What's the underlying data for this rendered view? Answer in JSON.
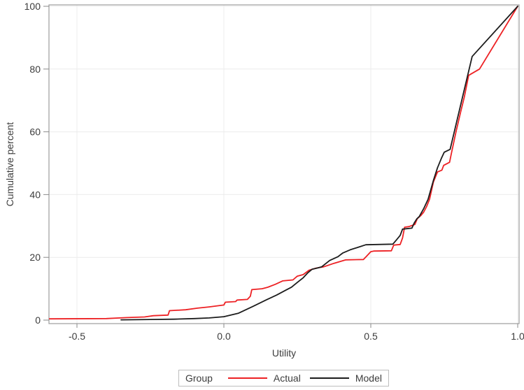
{
  "figure": {
    "background": "#ffffff",
    "x_axis": {
      "label": "Utility",
      "tick_labels": [
        "-0.5",
        "0.0",
        "0.5",
        "1.0"
      ],
      "tick_values": [
        -0.5,
        0.0,
        0.5,
        1.0
      ],
      "min": -0.6,
      "max": 1.0
    },
    "y_axis": {
      "label": "Cumulative percent",
      "tick_labels": [
        "0",
        "20",
        "40",
        "60",
        "80",
        "100"
      ],
      "tick_values": [
        0,
        20,
        40,
        60,
        80,
        100
      ],
      "min": 0,
      "max": 100
    },
    "legend": {
      "title": "Group",
      "entries": [
        {
          "label": "Actual",
          "color": "#ed2124"
        },
        {
          "label": "Model",
          "color": "#1c1c1c"
        }
      ]
    },
    "colors": {
      "frame": "#a3a3a3",
      "grid": "#ececec",
      "tick": "#8a8a8a",
      "text": "#3c3c3c",
      "legend_border": "#bdbdbd"
    }
  },
  "chart_data": {
    "type": "line",
    "title": "",
    "xlabel": "Utility",
    "ylabel": "Cumulative percent",
    "xlim": [
      -0.6,
      1.0
    ],
    "ylim": [
      0,
      100
    ],
    "grid": true,
    "legend_position": "bottom",
    "legend_title": "Group",
    "series": [
      {
        "name": "Actual",
        "color": "#ed2124",
        "points": [
          [
            -0.6,
            0.4
          ],
          [
            -0.4,
            0.5
          ],
          [
            -0.33,
            0.8
          ],
          [
            -0.27,
            1.0
          ],
          [
            -0.24,
            1.4
          ],
          [
            -0.19,
            1.6
          ],
          [
            -0.185,
            3.0
          ],
          [
            -0.13,
            3.3
          ],
          [
            -0.09,
            3.8
          ],
          [
            -0.05,
            4.2
          ],
          [
            0.0,
            4.8
          ],
          [
            0.005,
            5.7
          ],
          [
            0.04,
            5.9
          ],
          [
            0.045,
            6.4
          ],
          [
            0.08,
            6.6
          ],
          [
            0.09,
            7.6
          ],
          [
            0.095,
            9.7
          ],
          [
            0.13,
            10.0
          ],
          [
            0.15,
            10.5
          ],
          [
            0.175,
            11.4
          ],
          [
            0.2,
            12.5
          ],
          [
            0.235,
            12.8
          ],
          [
            0.25,
            14.0
          ],
          [
            0.27,
            14.5
          ],
          [
            0.29,
            15.9
          ],
          [
            0.315,
            16.6
          ],
          [
            0.34,
            17.0
          ],
          [
            0.375,
            18.1
          ],
          [
            0.4,
            18.8
          ],
          [
            0.415,
            19.2
          ],
          [
            0.475,
            19.3
          ],
          [
            0.485,
            20.3
          ],
          [
            0.5,
            21.8
          ],
          [
            0.51,
            22.0
          ],
          [
            0.57,
            22.1
          ],
          [
            0.578,
            23.9
          ],
          [
            0.6,
            24.1
          ],
          [
            0.608,
            26.2
          ],
          [
            0.615,
            29.6
          ],
          [
            0.63,
            29.8
          ],
          [
            0.65,
            30.5
          ],
          [
            0.658,
            32.3
          ],
          [
            0.67,
            33.3
          ],
          [
            0.68,
            34.4
          ],
          [
            0.69,
            36.2
          ],
          [
            0.7,
            38.5
          ],
          [
            0.713,
            44.0
          ],
          [
            0.727,
            47.2
          ],
          [
            0.742,
            47.8
          ],
          [
            0.748,
            49.3
          ],
          [
            0.768,
            50.3
          ],
          [
            0.774,
            53.0
          ],
          [
            0.79,
            60.0
          ],
          [
            0.805,
            66.0
          ],
          [
            0.818,
            71.0
          ],
          [
            0.833,
            78.0
          ],
          [
            0.87,
            80.0
          ],
          [
            1.0,
            100.0
          ]
        ]
      },
      {
        "name": "Model",
        "color": "#1c1c1c",
        "points": [
          [
            -0.35,
            0.1
          ],
          [
            -0.25,
            0.2
          ],
          [
            -0.17,
            0.3
          ],
          [
            -0.1,
            0.5
          ],
          [
            -0.05,
            0.7
          ],
          [
            0.0,
            1.1
          ],
          [
            0.05,
            2.2
          ],
          [
            0.1,
            4.4
          ],
          [
            0.15,
            6.7
          ],
          [
            0.18,
            8.0
          ],
          [
            0.21,
            9.5
          ],
          [
            0.23,
            10.5
          ],
          [
            0.25,
            12.0
          ],
          [
            0.27,
            13.5
          ],
          [
            0.285,
            15.0
          ],
          [
            0.3,
            16.2
          ],
          [
            0.318,
            16.6
          ],
          [
            0.333,
            17.0
          ],
          [
            0.36,
            19.0
          ],
          [
            0.388,
            20.2
          ],
          [
            0.405,
            21.4
          ],
          [
            0.43,
            22.4
          ],
          [
            0.46,
            23.3
          ],
          [
            0.483,
            24.0
          ],
          [
            0.575,
            24.2
          ],
          [
            0.585,
            25.3
          ],
          [
            0.6,
            27.0
          ],
          [
            0.608,
            29.0
          ],
          [
            0.64,
            29.3
          ],
          [
            0.648,
            31.0
          ],
          [
            0.657,
            32.3
          ],
          [
            0.665,
            33.0
          ],
          [
            0.68,
            35.5
          ],
          [
            0.695,
            38.5
          ],
          [
            0.713,
            44.5
          ],
          [
            0.727,
            48.5
          ],
          [
            0.74,
            51.5
          ],
          [
            0.75,
            53.5
          ],
          [
            0.77,
            54.4
          ],
          [
            0.845,
            84.0
          ],
          [
            1.0,
            100.0
          ]
        ]
      }
    ]
  }
}
